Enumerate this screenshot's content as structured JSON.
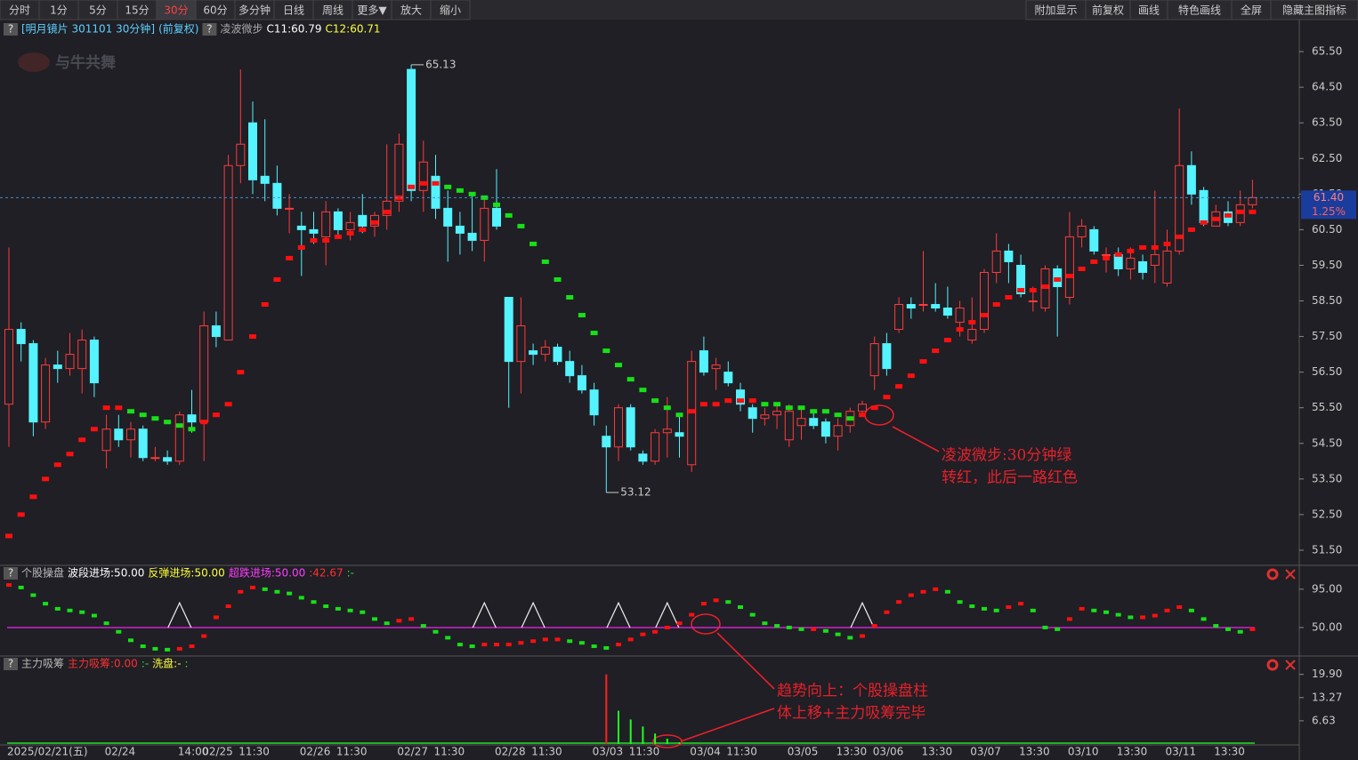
{
  "toolbar": {
    "left": [
      "分时",
      "1分",
      "5分",
      "15分",
      "30分",
      "60分",
      "多分钟",
      "日线",
      "周线",
      "更多▼",
      "放大",
      "缩小"
    ],
    "active": 4,
    "right": [
      "附加显示",
      "前复权",
      "画线",
      "特色画线",
      "全屏",
      "隐藏主图指标"
    ]
  },
  "logo": "与牛共舞",
  "annotations": [
    {
      "lines": [
        "凌波微步:30分钟绿",
        "转红，此后一路红色"
      ]
    },
    {
      "lines": [
        "趋势向上：个股操盘柱",
        "体上移+主力吸筹完毕"
      ]
    }
  ],
  "chart_data": [
    {
      "type": "candlestick",
      "title": "[明月镜片 301101 30分钟]",
      "subtitle": "(前复权)",
      "help": "?",
      "legend": [
        {
          "name": "凌波微步",
          "color": "#aaaaaa"
        },
        {
          "name": "C11:60.79",
          "color": "#ffffff"
        },
        {
          "name": "C12:60.71",
          "color": "#ffff3c"
        }
      ],
      "up_color": "#ff3b3b",
      "down_color": "#54f3ff",
      "categories": [
        "2025/02/21(五)",
        null,
        null,
        null,
        null,
        null,
        null,
        null,
        "02/24",
        null,
        null,
        null,
        null,
        null,
        "14:00",
        null,
        "02/25",
        null,
        null,
        "11:30",
        null,
        null,
        null,
        null,
        "02/26",
        null,
        null,
        "11:30",
        null,
        null,
        null,
        null,
        "02/27",
        null,
        null,
        "11:30",
        null,
        null,
        null,
        null,
        "02/28",
        null,
        null,
        "11:30",
        null,
        null,
        null,
        null,
        "03/03",
        null,
        null,
        "11:30",
        null,
        null,
        null,
        null,
        "03/04",
        null,
        null,
        "11:30",
        null,
        null,
        null,
        null,
        "03/05",
        null,
        null,
        null,
        "13:30",
        null,
        null,
        "03/06",
        null,
        null,
        null,
        "13:30",
        null,
        null,
        null,
        "03/07",
        null,
        null,
        null,
        "13:30",
        null,
        null,
        null,
        "03/10",
        null,
        null,
        null,
        "13:30",
        null,
        null,
        null,
        "03/11",
        null,
        null,
        null,
        "13:30",
        null,
        null,
        null
      ],
      "open": [
        55.6,
        57.7,
        57.3,
        55.1,
        56.7,
        56.6,
        56.6,
        57.4,
        54.3,
        54.9,
        54.6,
        54.9,
        54.1,
        54.1,
        54.0,
        55.3,
        55.1,
        57.8,
        57.4,
        62.3,
        63.5,
        62.0,
        61.8,
        61.1,
        60.6,
        60.5,
        60.3,
        61.0,
        60.5,
        60.9,
        60.6,
        60.9,
        61.3,
        65.0,
        61.6,
        62.0,
        61.1,
        60.6,
        60.4,
        60.2,
        61.1,
        58.6,
        56.8,
        57.1,
        57.0,
        57.2,
        56.8,
        56.4,
        56.0,
        54.7,
        54.4,
        55.5,
        54.2,
        54.0,
        54.8,
        54.8,
        53.9,
        57.1,
        56.6,
        56.5,
        56.0,
        55.5,
        55.2,
        55.3,
        54.6,
        55.0,
        55.2,
        55.1,
        54.7,
        55.0,
        55.4,
        56.4,
        57.3,
        57.7,
        58.4,
        58.4,
        58.4,
        58.3,
        57.9,
        57.4,
        57.7,
        59.3,
        59.9,
        59.5,
        58.5,
        58.3,
        59.4,
        58.6,
        60.3,
        60.5,
        59.8,
        59.8,
        59.4,
        59.6,
        59.5,
        59.0,
        59.9,
        62.3,
        61.6,
        60.6,
        61.0,
        60.7,
        61.2
      ],
      "high": [
        60.0,
        57.9,
        57.4,
        56.9,
        57.1,
        57.6,
        57.7,
        57.5,
        55.3,
        55.3,
        55.1,
        55.0,
        54.4,
        54.3,
        55.4,
        56.0,
        58.2,
        58.2,
        62.6,
        65.0,
        64.1,
        63.6,
        62.3,
        61.5,
        61.0,
        61.0,
        61.3,
        61.1,
        61.0,
        61.5,
        61.0,
        62.9,
        63.2,
        65.13,
        63.0,
        62.6,
        61.6,
        61.0,
        61.5,
        61.4,
        62.2,
        58.6,
        58.6,
        57.3,
        57.4,
        57.3,
        57.1,
        56.7,
        56.2,
        55.0,
        55.6,
        55.6,
        54.3,
        54.9,
        55.8,
        55.3,
        57.1,
        57.5,
        56.9,
        56.8,
        56.2,
        55.6,
        55.5,
        55.6,
        55.6,
        55.5,
        55.4,
        55.2,
        55.2,
        55.5,
        55.7,
        57.5,
        57.6,
        58.6,
        58.6,
        59.9,
        59.0,
        58.9,
        58.5,
        58.6,
        59.4,
        60.4,
        60.1,
        59.8,
        58.9,
        59.5,
        59.5,
        61.0,
        60.8,
        60.6,
        60.0,
        60.0,
        60.0,
        59.8,
        61.6,
        60.5,
        63.9,
        62.7,
        61.7,
        61.2,
        61.3,
        61.6,
        61.9
      ],
      "low": [
        54.4,
        56.8,
        54.7,
        54.9,
        56.2,
        56.4,
        55.9,
        55.8,
        53.8,
        54.4,
        54.1,
        54.0,
        54.0,
        53.9,
        53.9,
        54.8,
        54.0,
        57.2,
        57.4,
        61.8,
        61.5,
        61.3,
        60.9,
        60.4,
        59.2,
        60.1,
        59.5,
        60.3,
        60.2,
        60.4,
        60.3,
        60.5,
        61.0,
        61.3,
        61.0,
        60.8,
        59.6,
        59.8,
        59.9,
        59.6,
        60.5,
        55.5,
        55.9,
        56.7,
        56.8,
        56.7,
        56.2,
        55.9,
        55.0,
        53.12,
        54.0,
        54.3,
        53.9,
        53.9,
        54.1,
        54.1,
        53.7,
        56.4,
        56.0,
        56.1,
        55.4,
        54.8,
        55.0,
        54.9,
        54.4,
        54.6,
        54.9,
        54.5,
        54.3,
        54.8,
        55.3,
        56.0,
        56.4,
        57.6,
        58.0,
        58.2,
        58.2,
        58.0,
        57.5,
        57.3,
        57.6,
        59.0,
        59.0,
        58.6,
        58.2,
        58.2,
        57.5,
        58.4,
        60.0,
        59.8,
        59.3,
        59.2,
        59.1,
        59.1,
        59.0,
        58.9,
        59.8,
        61.2,
        60.6,
        60.6,
        60.6,
        60.6,
        61.1
      ],
      "close": [
        57.7,
        57.3,
        55.1,
        56.7,
        56.6,
        57.0,
        57.4,
        56.2,
        54.9,
        54.6,
        54.9,
        54.1,
        54.1,
        54.0,
        55.3,
        55.1,
        57.8,
        57.5,
        62.3,
        62.9,
        61.9,
        61.8,
        61.1,
        61.1,
        60.5,
        60.4,
        61.0,
        60.5,
        60.7,
        60.6,
        60.9,
        61.3,
        62.9,
        61.6,
        62.4,
        61.1,
        60.6,
        60.4,
        60.2,
        61.1,
        60.6,
        56.8,
        57.8,
        57.0,
        57.2,
        56.8,
        56.4,
        56.0,
        55.3,
        54.4,
        55.5,
        54.4,
        54.0,
        54.8,
        54.9,
        54.7,
        56.8,
        56.5,
        56.7,
        56.2,
        55.6,
        55.2,
        55.3,
        55.4,
        55.4,
        55.2,
        55.0,
        54.7,
        55.0,
        55.4,
        55.6,
        57.3,
        56.6,
        58.4,
        58.3,
        58.4,
        58.3,
        58.1,
        58.3,
        57.7,
        59.3,
        59.9,
        59.6,
        58.7,
        58.5,
        59.4,
        58.9,
        60.3,
        60.6,
        59.9,
        59.8,
        59.4,
        59.7,
        59.3,
        59.8,
        59.9,
        62.3,
        61.5,
        60.7,
        61.0,
        60.7,
        61.2,
        61.4
      ],
      "series": [
        {
          "name": "凌波微步",
          "up_color": "#ff1010",
          "down_color": "#18e018",
          "values": [
            51.9,
            52.5,
            53.0,
            53.5,
            53.9,
            54.2,
            54.6,
            54.9,
            55.5,
            55.5,
            55.4,
            55.3,
            55.2,
            55.1,
            55.0,
            54.9,
            55.1,
            55.3,
            55.6,
            56.5,
            57.5,
            58.4,
            59.1,
            59.7,
            60.0,
            60.2,
            60.2,
            60.3,
            60.4,
            60.5,
            60.7,
            61.0,
            61.4,
            61.7,
            61.8,
            61.8,
            61.7,
            61.6,
            61.5,
            61.4,
            61.2,
            60.9,
            60.6,
            60.1,
            59.6,
            59.1,
            58.6,
            58.1,
            57.6,
            57.1,
            56.7,
            56.3,
            56.0,
            55.7,
            55.5,
            55.3,
            55.4,
            55.6,
            55.6,
            55.7,
            55.7,
            55.7,
            55.6,
            55.6,
            55.5,
            55.5,
            55.4,
            55.4,
            55.3,
            55.2,
            55.3,
            55.5,
            55.8,
            56.1,
            56.4,
            56.8,
            57.1,
            57.4,
            57.7,
            57.9,
            58.1,
            58.4,
            58.6,
            58.8,
            58.8,
            58.9,
            59.1,
            59.2,
            59.4,
            59.6,
            59.7,
            59.8,
            59.9,
            60.0,
            60.0,
            60.1,
            60.3,
            60.5,
            60.7,
            60.8,
            60.9,
            61.0,
            61.0
          ]
        }
      ],
      "max_label": 65.13,
      "min_label": 53.12,
      "last_price": {
        "value": 61.4,
        "label": "61.40"
      },
      "change_label": "1.25%",
      "ylim": [
        51.1,
        66.4
      ],
      "yticks": [
        {
          "value": 51.5,
          "label": "51.50"
        },
        {
          "value": 52.5,
          "label": "52.50"
        },
        {
          "value": 53.5,
          "label": "53.50"
        },
        {
          "value": 54.5,
          "label": "54.50"
        },
        {
          "value": 55.5,
          "label": "55.50"
        },
        {
          "value": 56.5,
          "label": "56.50"
        },
        {
          "value": 57.5,
          "label": "57.50"
        },
        {
          "value": 58.5,
          "label": "58.50"
        },
        {
          "value": 59.5,
          "label": "59.50"
        },
        {
          "value": 60.5,
          "label": "60.50"
        },
        {
          "value": 61.5,
          "label": "61.50"
        },
        {
          "value": 62.5,
          "label": "62.50"
        },
        {
          "value": 63.5,
          "label": "63.50"
        },
        {
          "value": 64.5,
          "label": "64.50"
        },
        {
          "value": 65.5,
          "label": "65.50"
        }
      ]
    },
    {
      "type": "indicator",
      "title": "个股操盘",
      "help": "?",
      "legend": [
        {
          "name": "波段进场:50.00",
          "color": "#ffffff"
        },
        {
          "name": "反弹进场:50.00",
          "color": "#ffff3c"
        },
        {
          "name": "超跌进场:50.00",
          "color": "#ff3cff"
        },
        {
          "name": ":42.67",
          "color": "#ff3030"
        },
        {
          "name": ":-",
          "color": "#30e030"
        }
      ],
      "up_color": "#ff1010",
      "down_color": "#18e018",
      "values": [
        100,
        97,
        88,
        78,
        72,
        70,
        68,
        64,
        55,
        45,
        35,
        28,
        25,
        24,
        25,
        28,
        40,
        62,
        75,
        92,
        97,
        95,
        92,
        90,
        85,
        80,
        75,
        72,
        70,
        68,
        60,
        55,
        58,
        60,
        52,
        45,
        38,
        30,
        28,
        30,
        30,
        30,
        32,
        34,
        36,
        36,
        34,
        32,
        28,
        26,
        30,
        36,
        42,
        45,
        50,
        55,
        65,
        78,
        82,
        80,
        74,
        65,
        55,
        52,
        50,
        48,
        48,
        46,
        42,
        38,
        40,
        52,
        68,
        80,
        88,
        92,
        95,
        92,
        80,
        75,
        72,
        70,
        74,
        78,
        70,
        50,
        48,
        60,
        72,
        70,
        68,
        65,
        62,
        62,
        64,
        70,
        74,
        70,
        60,
        52,
        48,
        45,
        48
      ],
      "baseline": 50,
      "baseline_color": "#d020d0",
      "signal_bars": [
        14,
        39,
        43,
        50,
        54,
        70
      ],
      "signal_top": 79,
      "ylim": [
        17.6,
        122
      ],
      "yticks": [
        {
          "value": 95,
          "label": "95.00"
        },
        {
          "value": 50,
          "label": "50.00"
        }
      ]
    },
    {
      "type": "bar",
      "title": "主力吸筹",
      "help": "?",
      "legend": [
        {
          "name": "主力吸筹:0.00",
          "color": "#ff3030"
        },
        {
          "name": ":-",
          "color": "#30e030"
        },
        {
          "name": "洗盘:-",
          "color": "#ffff3c"
        },
        {
          "name": ":",
          "color": "#30e030"
        }
      ],
      "up_color": "#ff2020",
      "down_color": "#20ff20",
      "values": [
        0,
        0,
        0,
        0,
        0,
        0,
        0,
        0,
        0,
        0,
        0,
        0,
        0,
        0,
        0,
        0,
        0,
        0,
        0,
        0,
        0,
        0,
        0,
        0,
        0,
        0,
        0,
        0,
        0,
        0,
        0,
        0,
        0,
        0,
        0,
        0,
        0,
        0,
        0,
        0,
        0,
        0,
        0,
        0,
        0,
        0,
        0,
        0,
        0,
        19.9,
        9.5,
        7,
        5,
        3,
        1.5,
        0.5,
        0,
        0,
        0,
        0,
        0,
        0,
        0,
        0,
        0,
        0,
        0,
        0,
        0,
        0,
        0,
        0,
        0,
        0,
        0,
        0,
        0,
        0,
        0,
        0,
        0,
        0,
        0,
        0,
        0,
        0,
        0,
        0,
        0,
        0,
        0,
        0,
        0,
        0,
        0,
        0,
        0,
        0,
        0,
        0,
        0,
        0,
        0
      ],
      "ylim": [
        0,
        24.9
      ],
      "yticks": [
        {
          "value": 19.9,
          "label": "19.90"
        },
        {
          "value": 13.27,
          "label": "13.27"
        },
        {
          "value": 6.63,
          "label": "6.63"
        }
      ]
    }
  ]
}
